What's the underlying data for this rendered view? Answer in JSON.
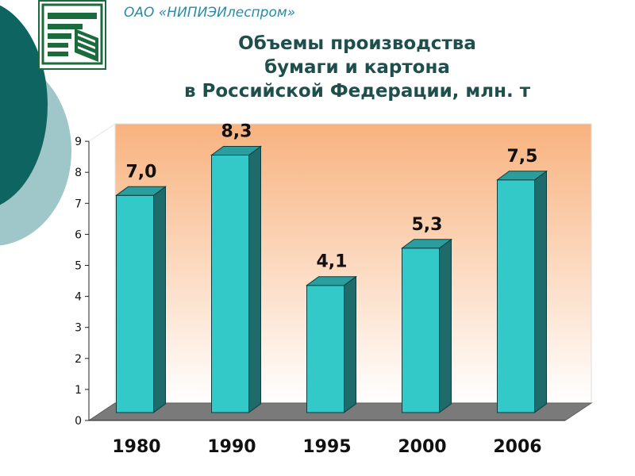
{
  "header": {
    "org_name": "ОАО «НИПИЭИлеспром»",
    "title_lines": [
      "Объемы производства",
      "бумаги и картона",
      "в Российской Федерации, млн. т"
    ]
  },
  "colors": {
    "bar_front": "#33c9c9",
    "bar_side": "#1f6b6b",
    "bar_top": "#2a9e9e",
    "plot_bg_top": "#f8b27e",
    "plot_bg_bottom": "#ffffff",
    "floor": "#7a7a7a",
    "teal_dark": "#0e6460",
    "teal_light": "#9fc7c9"
  },
  "chart_data": {
    "type": "bar",
    "categories": [
      "1980",
      "1990",
      "1995",
      "2000",
      "2006"
    ],
    "values": [
      7.0,
      8.3,
      4.1,
      5.3,
      7.5
    ],
    "value_labels": [
      "7,0",
      "8,3",
      "4,1",
      "5,3",
      "7,5"
    ],
    "y_ticks": [
      "0",
      "1",
      "2",
      "3",
      "4",
      "5",
      "6",
      "7",
      "8",
      "9"
    ],
    "ylim": [
      0,
      9
    ],
    "title": "Объемы производства бумаги и картона в Российской Федерации, млн. т",
    "xlabel": "",
    "ylabel": "",
    "grid": false,
    "style": "3d"
  }
}
